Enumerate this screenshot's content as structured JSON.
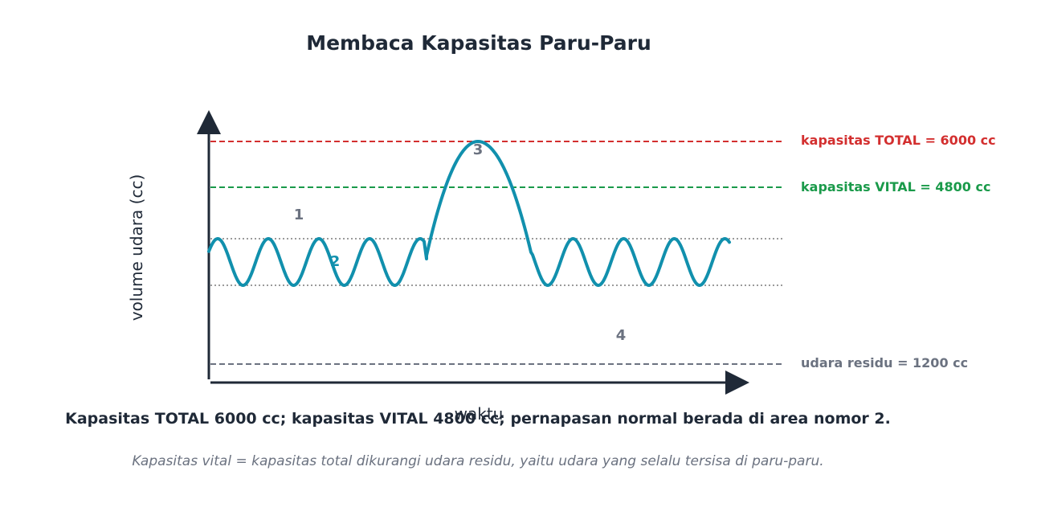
{
  "title": "Membaca Kapasitas Paru-Paru",
  "axes": {
    "y_label": "volume udara (cc)",
    "x_label": "waktu"
  },
  "levels": {
    "total": {
      "label": "kapasitas TOTAL = 6000 cc",
      "color": "#d32f2f"
    },
    "vital": {
      "label": "kapasitas VITAL = 4800 cc",
      "color": "#1a9a4a"
    },
    "residu": {
      "label": "udara residu = 1200 cc",
      "color": "#6b7280"
    }
  },
  "area_numbers": {
    "n1": "1",
    "n2": "2",
    "n3": "3",
    "n4": "4"
  },
  "colors": {
    "wave": "#1190ad",
    "text_dark": "#1f2937",
    "text_gray": "#6b7280",
    "tidal_lines": "#7a7a7a"
  },
  "conclusion": "Kapasitas TOTAL 6000 cc; kapasitas VITAL 4800 cc; pernapasan normal berada di area nomor 2.",
  "note": "Kapasitas vital = kapasitas total dikurangi udara residu, yaitu udara yang selalu tersisa di paru-paru."
}
